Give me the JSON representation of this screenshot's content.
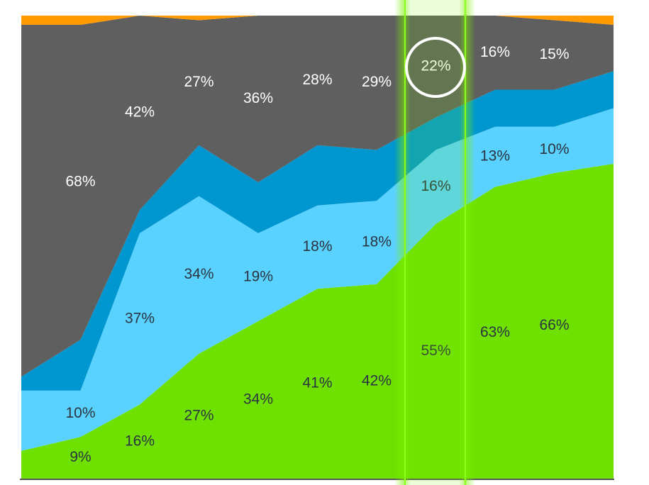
{
  "chart_data": {
    "type": "stacked_area",
    "x": [
      0,
      1,
      2,
      3,
      4,
      5,
      6,
      7,
      8,
      9,
      10
    ],
    "xlim": [
      0,
      10
    ],
    "ylim": [
      0,
      100
    ],
    "series": [
      {
        "color": "#6fe100",
        "label_color": "#2b3440",
        "values": [
          6,
          9,
          16,
          27,
          34,
          41,
          42,
          55,
          63,
          66,
          68
        ],
        "value_labels": [
          null,
          "9%",
          "16%",
          "27%",
          "34%",
          "41%",
          "42%",
          "55%",
          "63%",
          "66%",
          null
        ]
      },
      {
        "color": "#5ad2ff",
        "label_color": "#2b3440",
        "values": [
          13,
          10,
          37,
          34,
          19,
          18,
          18,
          16,
          13,
          10,
          12
        ],
        "value_labels": [
          null,
          "10%",
          "37%",
          "34%",
          "19%",
          "18%",
          "18%",
          "16%",
          "13%",
          "10%",
          null
        ]
      },
      {
        "color": "#0096cf",
        "values": [
          3,
          11,
          5,
          11,
          11,
          13,
          11,
          7,
          8,
          8,
          8
        ]
      },
      {
        "color": "#5f5f5f",
        "label_color": "#ffffff",
        "values": [
          76,
          68,
          42,
          27,
          36,
          28,
          29,
          22,
          16,
          15,
          10
        ],
        "value_labels": [
          null,
          "68%",
          "42%",
          "27%",
          "36%",
          "28%",
          "29%",
          "22%",
          "16%",
          "15%",
          null
        ]
      },
      {
        "color": "#ff9a00",
        "values": [
          2,
          2,
          0,
          1,
          0,
          0,
          0,
          0,
          0,
          1,
          2
        ]
      }
    ]
  }
}
